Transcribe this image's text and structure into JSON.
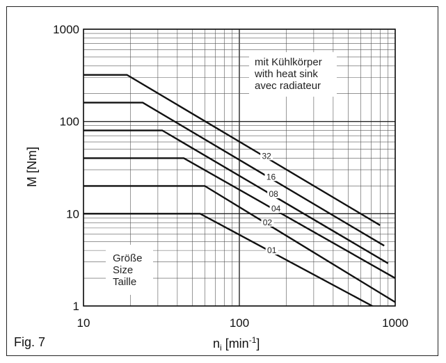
{
  "figure_label": "Fig. 7",
  "heat_sink_note": [
    "mit Kühlkörper",
    "with heat sink",
    "avec radiateur"
  ],
  "size_note": [
    "Größe",
    "Size",
    "Taille"
  ],
  "chart_data": {
    "type": "line",
    "title": "",
    "xlabel": "n_i [min^-1]",
    "ylabel": "M [Nm]",
    "x_scale": "log",
    "y_scale": "log",
    "xlim": [
      10,
      1000
    ],
    "ylim": [
      1,
      1000
    ],
    "grid": true,
    "x_ticks": [
      "10",
      "100",
      "1000"
    ],
    "y_ticks": [
      "1",
      "10",
      "100",
      "1000"
    ],
    "series": [
      {
        "name": "32",
        "x": [
          10,
          19,
          800
        ],
        "y": [
          320,
          320,
          7.5
        ]
      },
      {
        "name": "16",
        "x": [
          10,
          24,
          850
        ],
        "y": [
          160,
          160,
          4.5
        ]
      },
      {
        "name": "08",
        "x": [
          10,
          32,
          900
        ],
        "y": [
          80,
          80,
          2.9
        ]
      },
      {
        "name": "04",
        "x": [
          10,
          44,
          1000
        ],
        "y": [
          40,
          40,
          2
        ]
      },
      {
        "name": "02",
        "x": [
          10,
          60,
          1000
        ],
        "y": [
          20,
          20,
          1.1
        ]
      },
      {
        "name": "01",
        "x": [
          10,
          56,
          800
        ],
        "y": [
          10,
          10,
          0.9
        ]
      }
    ]
  }
}
